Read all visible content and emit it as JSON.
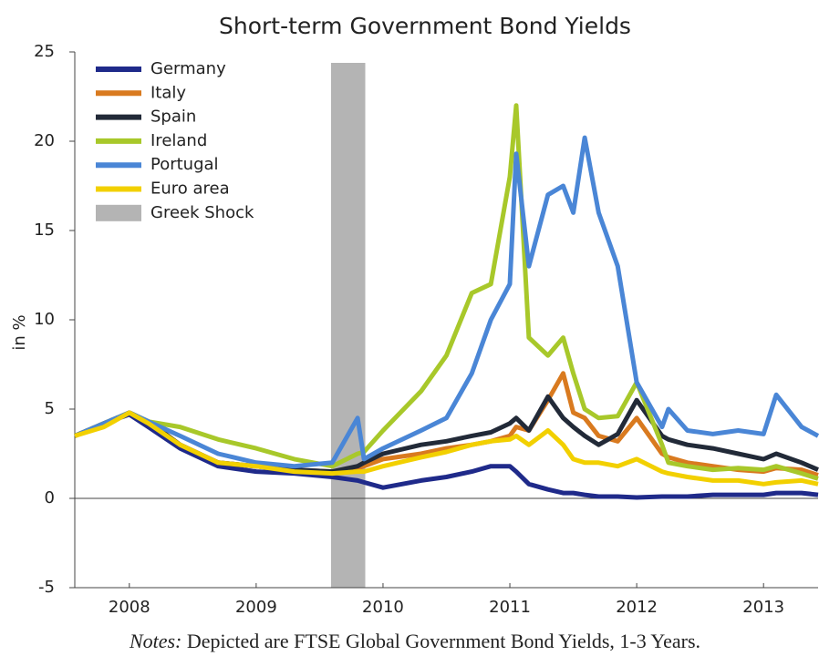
{
  "chart_data": {
    "type": "line",
    "title": "Short-term Government Bond Yields",
    "y_label": "in %",
    "notes_label": "Notes:",
    "notes": "Depicted are FTSE Global Government Bond Yields, 1-3 Years.",
    "xlim": [
      2008.07,
      2013.93
    ],
    "xticks": [
      {
        "value": 2008.5,
        "label": "2008"
      },
      {
        "value": 2009.5,
        "label": "2009"
      },
      {
        "value": 2010.5,
        "label": "2010"
      },
      {
        "value": 2011.5,
        "label": "2011"
      },
      {
        "value": 2012.5,
        "label": "2012"
      },
      {
        "value": 2013.5,
        "label": "2013"
      }
    ],
    "ylim": [
      -5,
      25
    ],
    "yticks": [
      -5,
      0,
      5,
      10,
      15,
      20,
      25
    ],
    "legend": "top-left",
    "x": [
      2008.07,
      2008.3,
      2008.5,
      2008.65,
      2008.9,
      2009.2,
      2009.5,
      2009.8,
      2010.1,
      2010.3,
      2010.35,
      2010.5,
      2010.8,
      2011.0,
      2011.2,
      2011.35,
      2011.5,
      2011.55,
      2011.65,
      2011.8,
      2011.92,
      2012.0,
      2012.09,
      2012.2,
      2012.35,
      2012.5,
      2012.7,
      2012.75,
      2012.9,
      2013.1,
      2013.3,
      2013.5,
      2013.6,
      2013.8,
      2013.93
    ],
    "series": [
      {
        "name": "Germany",
        "color": "#1f2a8a",
        "values": [
          3.5,
          4.2,
          4.7,
          4.0,
          2.8,
          1.8,
          1.5,
          1.4,
          1.2,
          1.0,
          0.9,
          0.6,
          1.0,
          1.2,
          1.5,
          1.8,
          1.8,
          1.5,
          0.8,
          0.5,
          0.3,
          0.3,
          0.2,
          0.1,
          0.1,
          0.05,
          0.1,
          0.1,
          0.1,
          0.2,
          0.2,
          0.2,
          0.3,
          0.3,
          0.2
        ]
      },
      {
        "name": "Italy",
        "color": "#d97a1f",
        "values": [
          3.5,
          4.2,
          4.8,
          4.3,
          3.0,
          2.0,
          1.8,
          1.6,
          1.5,
          1.7,
          1.8,
          2.2,
          2.5,
          2.8,
          3.0,
          3.2,
          3.5,
          4.0,
          3.8,
          5.5,
          7.0,
          4.8,
          4.5,
          3.5,
          3.2,
          4.5,
          2.5,
          2.3,
          2.0,
          1.8,
          1.6,
          1.5,
          1.7,
          1.6,
          1.3
        ]
      },
      {
        "name": "Spain",
        "color": "#222a38",
        "values": [
          3.5,
          4.2,
          4.8,
          4.3,
          3.0,
          2.0,
          1.8,
          1.6,
          1.5,
          1.8,
          2.0,
          2.5,
          3.0,
          3.2,
          3.5,
          3.7,
          4.2,
          4.5,
          3.8,
          5.7,
          4.5,
          4.0,
          3.5,
          3.0,
          3.6,
          5.5,
          3.5,
          3.3,
          3.0,
          2.8,
          2.5,
          2.2,
          2.5,
          2.0,
          1.6
        ]
      },
      {
        "name": "Ireland",
        "color": "#a8c82a",
        "values": [
          3.5,
          4.2,
          4.8,
          4.3,
          4.0,
          3.3,
          2.8,
          2.2,
          1.8,
          2.5,
          2.6,
          3.8,
          6.0,
          8.0,
          11.5,
          12.0,
          18.0,
          22.0,
          9.0,
          8.0,
          9.0,
          7.0,
          5.0,
          4.5,
          4.6,
          6.5,
          3.0,
          2.0,
          1.8,
          1.6,
          1.7,
          1.6,
          1.8,
          1.4,
          1.1
        ]
      },
      {
        "name": "Portugal",
        "color": "#4a86d6",
        "values": [
          3.5,
          4.2,
          4.8,
          4.3,
          3.5,
          2.5,
          2.0,
          1.8,
          2.0,
          4.5,
          2.2,
          2.8,
          3.8,
          4.5,
          7.0,
          10.0,
          12.0,
          19.3,
          13.0,
          17.0,
          17.5,
          16.0,
          20.2,
          16.0,
          13.0,
          6.5,
          4.0,
          5.0,
          3.8,
          3.6,
          3.8,
          3.6,
          5.8,
          4.0,
          3.5
        ]
      },
      {
        "name": "Euro area",
        "color": "#f2d000",
        "values": [
          3.5,
          4.0,
          4.8,
          4.2,
          3.0,
          2.0,
          1.8,
          1.5,
          1.4,
          1.5,
          1.5,
          1.8,
          2.3,
          2.6,
          3.0,
          3.2,
          3.3,
          3.5,
          3.0,
          3.8,
          3.0,
          2.2,
          2.0,
          2.0,
          1.8,
          2.2,
          1.5,
          1.4,
          1.2,
          1.0,
          1.0,
          0.8,
          0.9,
          1.0,
          0.8
        ]
      }
    ],
    "bands": [
      {
        "name": "Greek Shock",
        "color": "#b4b4b4",
        "x": [
          2010.09,
          2010.36
        ]
      }
    ]
  }
}
